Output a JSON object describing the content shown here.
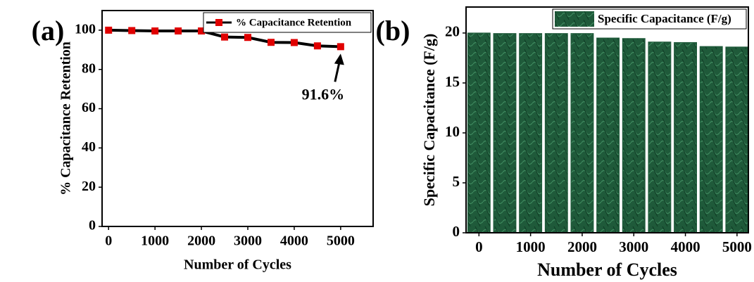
{
  "chart_data": [
    {
      "type": "line",
      "panel_label": "(a)",
      "x_label": "Number of Cycles",
      "y_label": "% Capacitance Retention",
      "x": [
        0,
        500,
        1000,
        1500,
        2000,
        2500,
        3000,
        3500,
        4000,
        4500,
        5000
      ],
      "series": [
        {
          "name": "% Capacitance Retention",
          "color": "#e00000",
          "values": [
            100,
            99.8,
            99.6,
            99.6,
            99.6,
            96.5,
            96.3,
            93.8,
            93.7,
            92,
            91.6
          ]
        }
      ],
      "xlim": [
        -140,
        5700
      ],
      "xticks": [
        0,
        1000,
        2000,
        3000,
        4000,
        5000
      ],
      "ylim": [
        0,
        110
      ],
      "yticks": [
        0,
        20,
        40,
        60,
        80,
        100
      ],
      "annotation": "91.6%",
      "legend": "upper right"
    },
    {
      "type": "bar",
      "panel_label": "(b)",
      "x_label": "Number of Cycles",
      "y_label": "Specific Capacitance (F/g)",
      "x": [
        0,
        500,
        1000,
        1500,
        2000,
        2500,
        3000,
        3500,
        4000,
        4500,
        5000
      ],
      "series": [
        {
          "name": "Specific Capacitance (F/g)",
          "color": "#1f5a3a",
          "values": [
            20,
            19.95,
            19.95,
            19.95,
            19.95,
            19.5,
            19.45,
            19.1,
            19.05,
            18.65,
            18.6
          ]
        }
      ],
      "xlim": [
        -250,
        5220
      ],
      "xticks": [
        0,
        1000,
        2000,
        3000,
        4000,
        5000
      ],
      "ylim": [
        0,
        22.6
      ],
      "yticks": [
        0,
        5,
        10,
        15,
        20
      ],
      "legend": "upper right"
    }
  ]
}
